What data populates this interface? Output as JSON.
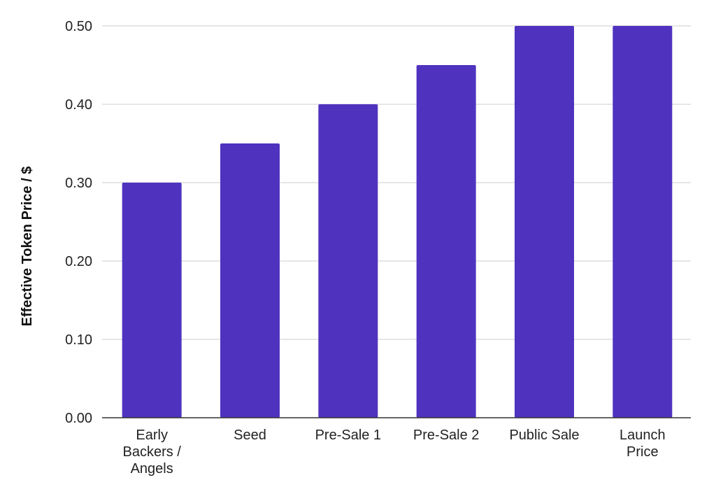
{
  "chart_data": {
    "type": "bar",
    "categories": [
      [
        "Early",
        "Backers /",
        "Angels"
      ],
      [
        "Seed"
      ],
      [
        "Pre-Sale 1"
      ],
      [
        "Pre-Sale 2"
      ],
      [
        "Public Sale"
      ],
      [
        "Launch",
        "Price"
      ]
    ],
    "values": [
      0.3,
      0.35,
      0.4,
      0.45,
      0.5,
      0.5
    ],
    "title": "",
    "xlabel": "",
    "ylabel": "Effective Token Price / $",
    "ylim": [
      0,
      0.5
    ],
    "yticks": [
      "0.00",
      "0.10",
      "0.20",
      "0.30",
      "0.40",
      "0.50"
    ],
    "bar_color": "#4f33bf",
    "grid": true,
    "legend": "none"
  }
}
